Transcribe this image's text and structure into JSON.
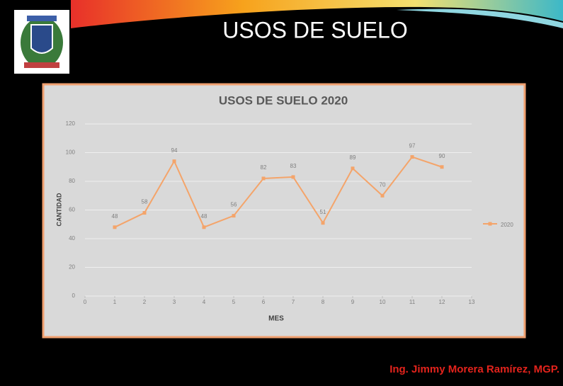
{
  "slide_title": "USOS DE SUELO",
  "footer": "Ing. Jimmy Morera Ramírez, MGP.",
  "chart_data": {
    "type": "line",
    "title": "USOS DE SUELO 2020",
    "xlabel": "MES",
    "ylabel": "CANTIDAD",
    "x": [
      1,
      2,
      3,
      4,
      5,
      6,
      7,
      8,
      9,
      10,
      11,
      12
    ],
    "series": [
      {
        "name": "2020",
        "color": "#f4a46a",
        "values": [
          48,
          58,
          94,
          48,
          56,
          82,
          83,
          51,
          89,
          70,
          97,
          90
        ]
      }
    ],
    "xlim": [
      0,
      13
    ],
    "xticks": [
      0,
      1,
      2,
      3,
      4,
      5,
      6,
      7,
      8,
      9,
      10,
      11,
      12,
      13
    ],
    "ylim": [
      0,
      120
    ],
    "yticks": [
      0,
      20,
      40,
      60,
      80,
      100,
      120
    ],
    "grid": true,
    "legend": "right"
  }
}
